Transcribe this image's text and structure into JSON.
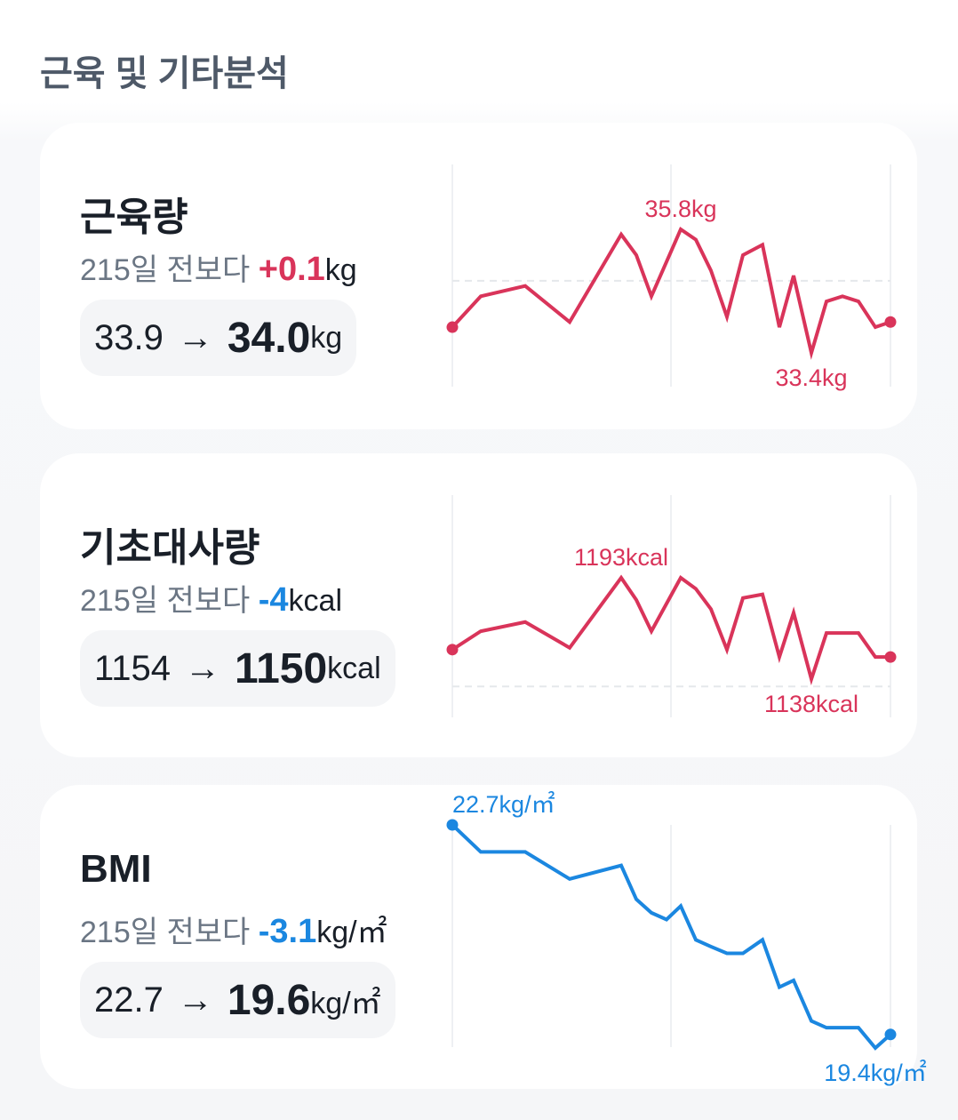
{
  "section_title": "근육 및 기타분석",
  "cards": [
    {
      "title": "근육량",
      "period_text": "215일 전보다",
      "delta": "+0.1",
      "delta_unit": "kg",
      "delta_color": "#d9345a",
      "from": "33.9",
      "arrow": "→",
      "to": "34.0",
      "unit": "kg",
      "chart_data": {
        "type": "line",
        "color": "#d9345a",
        "values": [
          33.9,
          34.5,
          34.7,
          34.0,
          35.7,
          35.3,
          34.5,
          35.8,
          35.6,
          35.0,
          34.1,
          35.3,
          35.5,
          33.9,
          34.9,
          33.4,
          34.4,
          34.5,
          34.4,
          33.9,
          34.0
        ],
        "max_label": "35.8kg",
        "min_label": "33.4kg",
        "reference_line": 34.8,
        "grid": true
      }
    },
    {
      "title": "기초대사량",
      "period_text": "215일 전보다",
      "delta": "-4",
      "delta_unit": "kcal",
      "delta_color": "#1b87e0",
      "from": "1154",
      "arrow": "→",
      "to": "1150",
      "unit": "kcal",
      "chart_data": {
        "type": "line",
        "color": "#d9345a",
        "values": [
          1154,
          1164,
          1169,
          1155,
          1193,
          1181,
          1164,
          1193,
          1187,
          1176,
          1154,
          1182,
          1184,
          1150,
          1174,
          1138,
          1163,
          1163,
          1163,
          1150,
          1150
        ],
        "max_label": "1193kcal",
        "min_label": "1138kcal",
        "reference_line": 1134,
        "grid": true
      }
    },
    {
      "title": "BMI",
      "period_text": "215일 전보다",
      "delta": "-3.1",
      "delta_unit": "kg/㎡",
      "delta_color": "#1b87e0",
      "from": "22.7",
      "arrow": "→",
      "to": "19.6",
      "unit": "kg/㎡",
      "chart_data": {
        "type": "line",
        "color": "#1b87e0",
        "values": [
          22.7,
          22.3,
          22.3,
          21.9,
          22.1,
          21.6,
          21.4,
          21.3,
          21.5,
          21.0,
          20.9,
          20.8,
          20.8,
          21.0,
          20.3,
          20.4,
          19.8,
          19.7,
          19.7,
          19.4,
          19.6
        ],
        "max_label": "22.7kg/㎡",
        "min_label": "19.4kg/㎡",
        "grid": true
      }
    }
  ]
}
